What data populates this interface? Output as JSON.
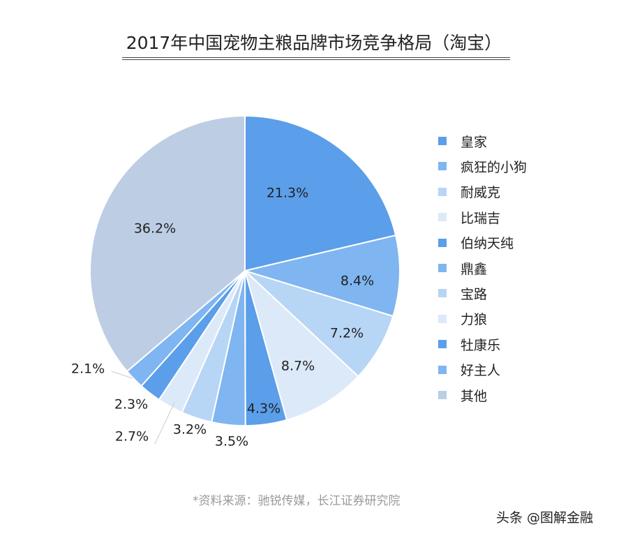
{
  "chart_data": {
    "type": "pie",
    "title": "2017年中国宠物主粮品牌市场竞争格局（淘宝）",
    "categories": [
      "皇家",
      "疯狂的小狗",
      "耐威克",
      "比瑞吉",
      "伯纳天纯",
      "鼎鑫",
      "宝路",
      "力狼",
      "牡康乐",
      "好主人",
      "其他"
    ],
    "values": [
      21.3,
      8.4,
      7.2,
      8.7,
      4.3,
      3.5,
      3.2,
      2.7,
      2.3,
      2.1,
      36.2
    ],
    "data_labels": [
      "21.3%",
      "8.4%",
      "7.2%",
      "8.7%",
      "4.3%",
      "3.5%",
      "3.2%",
      "2.7%",
      "2.3%",
      "2.1%",
      "36.2%"
    ],
    "colors": [
      "#5b9ee9",
      "#7fb5f1",
      "#b7d5f5",
      "#dce9f8",
      "#5b9ee9",
      "#7fb5f1",
      "#b7d5f5",
      "#dce9f8",
      "#5b9ee9",
      "#7fb5f1",
      "#bccde4"
    ],
    "start_angle": "12 o'clock, clockwise",
    "legend_position": "right"
  },
  "source": "*资料来源：驰锐传媒，长江证券研究院",
  "watermark": "头条 @图解金融"
}
